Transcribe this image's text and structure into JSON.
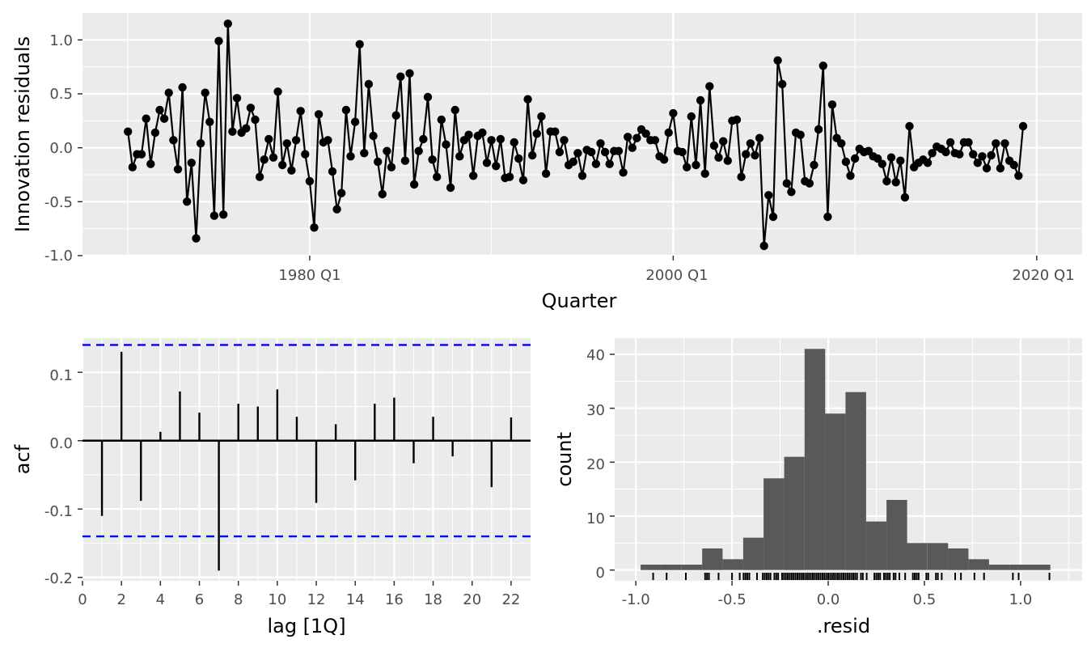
{
  "chart_data": [
    {
      "type": "line",
      "xlabel": "Quarter",
      "ylabel": "Innovation residuals",
      "x_tick_labels": [
        {
          "t": 40,
          "label": "1980 Q1"
        },
        {
          "t": 120,
          "label": "2000 Q1"
        },
        {
          "t": 200,
          "label": "2020 Q1"
        }
      ],
      "y_ticks": [
        1.0,
        0.5,
        0.0,
        -0.5,
        -1.0
      ],
      "y_tick_labels": [
        "1.0",
        "0.5",
        "0.0",
        "-0.5",
        "-1.0"
      ],
      "xlim": [
        -10,
        210
      ],
      "ylim": [
        -1.0,
        1.25
      ],
      "grid": true,
      "series": [
        {
          "values": [
            0.15,
            -0.18,
            -0.06,
            -0.06,
            0.27,
            -0.15,
            0.14,
            0.35,
            0.27,
            0.51,
            0.07,
            -0.2,
            0.56,
            -0.5,
            -0.14,
            -0.84,
            0.04,
            0.51,
            0.24,
            -0.63,
            0.99,
            -0.62,
            1.15,
            0.15,
            0.46,
            0.14,
            0.18,
            0.37,
            0.26,
            -0.27,
            -0.11,
            0.08,
            -0.09,
            0.52,
            -0.16,
            0.04,
            -0.21,
            0.07,
            0.34,
            -0.06,
            -0.31,
            -0.74,
            0.31,
            0.05,
            0.07,
            -0.22,
            -0.57,
            -0.42,
            0.35,
            -0.08,
            0.24,
            0.96,
            -0.05,
            0.59,
            0.11,
            -0.13,
            -0.43,
            -0.03,
            -0.18,
            0.3,
            0.66,
            -0.12,
            0.69,
            -0.34,
            -0.03,
            0.08,
            0.47,
            -0.11,
            -0.27,
            0.26,
            0.03,
            -0.37,
            0.35,
            -0.08,
            0.07,
            0.12,
            -0.26,
            0.11,
            0.14,
            -0.14,
            0.07,
            -0.17,
            0.08,
            -0.28,
            -0.27,
            0.05,
            -0.1,
            -0.3,
            0.45,
            -0.07,
            0.13,
            0.29,
            -0.24,
            0.15,
            0.15,
            -0.04,
            0.07,
            -0.16,
            -0.13,
            -0.05,
            -0.26,
            -0.02,
            -0.04,
            -0.15,
            0.04,
            -0.04,
            -0.15,
            -0.03,
            -0.03,
            -0.23,
            0.1,
            0.0,
            0.09,
            0.17,
            0.13,
            0.07,
            0.07,
            -0.08,
            -0.11,
            0.14,
            0.32,
            -0.03,
            -0.04,
            -0.18,
            0.29,
            -0.16,
            0.44,
            -0.24,
            0.57,
            0.02,
            -0.09,
            0.06,
            -0.12,
            0.25,
            0.26,
            -0.27,
            -0.06,
            0.04,
            -0.07,
            0.09,
            -0.91,
            -0.44,
            -0.64,
            0.81,
            0.59,
            -0.33,
            -0.41,
            0.14,
            0.12,
            -0.31,
            -0.33,
            -0.16,
            0.17,
            0.76,
            -0.64,
            0.4,
            0.09,
            0.04,
            -0.13,
            -0.26,
            -0.1,
            -0.01,
            -0.04,
            -0.03,
            -0.08,
            -0.1,
            -0.15,
            -0.31,
            -0.09,
            -0.32,
            -0.12,
            -0.46,
            0.2,
            -0.18,
            -0.14,
            -0.11,
            -0.14,
            -0.05,
            0.01,
            -0.01,
            -0.04,
            0.05,
            -0.05,
            -0.06,
            0.05,
            0.05,
            -0.06,
            -0.14,
            -0.08,
            -0.19,
            -0.07,
            0.04,
            -0.19,
            0.04,
            -0.12,
            -0.16,
            -0.26,
            0.2
          ]
        }
      ]
    },
    {
      "type": "bar",
      "xlabel": "lag [1Q]",
      "ylabel": "acf",
      "x_ticks": [
        0,
        2,
        4,
        6,
        8,
        10,
        12,
        14,
        16,
        18,
        20,
        22
      ],
      "x_tick_labels": [
        "0",
        "2",
        "4",
        "6",
        "8",
        "10",
        "12",
        "14",
        "16",
        "18",
        "20",
        "22"
      ],
      "y_ticks": [
        0.1,
        0.0,
        -0.1,
        -0.2
      ],
      "y_tick_labels": [
        "0.1",
        "0.0",
        "-0.1",
        "-0.2"
      ],
      "xlim": [
        0,
        23
      ],
      "ylim": [
        -0.205,
        0.15
      ],
      "grid": true,
      "lags": [
        1,
        2,
        3,
        4,
        5,
        6,
        7,
        8,
        9,
        10,
        11,
        12,
        13,
        14,
        15,
        16,
        17,
        18,
        19,
        20,
        21,
        22
      ],
      "values": [
        -0.11,
        0.13,
        -0.088,
        0.013,
        0.072,
        0.041,
        -0.19,
        0.054,
        0.05,
        0.075,
        0.035,
        -0.091,
        0.024,
        -0.058,
        0.054,
        0.063,
        -0.033,
        0.035,
        -0.023,
        0.0,
        -0.068,
        0.034
      ],
      "confidence_bounds": [
        0.14,
        -0.14
      ],
      "bound_color": "#0000ff"
    },
    {
      "type": "bar",
      "xlabel": ".resid",
      "ylabel": "count",
      "x_ticks": [
        -1.0,
        -0.5,
        0.0,
        0.5,
        1.0
      ],
      "x_tick_labels": [
        "-1.0",
        "-0.5",
        "0.0",
        "0.5",
        "1.0"
      ],
      "y_ticks": [
        0,
        10,
        20,
        30,
        40
      ],
      "y_tick_labels": [
        "0",
        "10",
        "20",
        "30",
        "40"
      ],
      "xlim": [
        -1.11,
        1.32
      ],
      "ylim": [
        -2,
        43
      ],
      "grid": true,
      "bar_color": "#595959",
      "bin_edges": [
        -0.975,
        -0.868,
        -0.762,
        -0.655,
        -0.549,
        -0.442,
        -0.336,
        -0.229,
        -0.123,
        -0.016,
        0.09,
        0.197,
        0.303,
        0.41,
        0.516,
        0.623,
        0.729,
        0.836,
        0.942,
        1.049,
        1.155
      ],
      "counts": [
        1,
        1,
        1,
        4,
        2,
        6,
        17,
        21,
        41,
        29,
        33,
        9,
        13,
        5,
        5,
        4,
        2,
        1,
        1,
        1
      ],
      "rug": [
        -0.91,
        -0.84,
        -0.74,
        -0.64,
        -0.63,
        -0.62,
        -0.57,
        -0.5,
        -0.46,
        -0.44,
        -0.43,
        -0.42,
        -0.41,
        -0.37,
        -0.34,
        -0.33,
        -0.32,
        -0.31,
        -0.3,
        -0.28,
        -0.27,
        -0.26,
        -0.24,
        -0.23,
        -0.22,
        -0.21,
        -0.2,
        -0.19,
        -0.18,
        -0.17,
        -0.16,
        -0.15,
        -0.14,
        -0.13,
        -0.12,
        -0.11,
        -0.1,
        -0.09,
        -0.08,
        -0.07,
        -0.06,
        -0.05,
        -0.04,
        -0.03,
        -0.02,
        -0.01,
        0.0,
        0.01,
        0.02,
        0.03,
        0.04,
        0.05,
        0.06,
        0.07,
        0.08,
        0.09,
        0.1,
        0.11,
        0.12,
        0.13,
        0.14,
        0.15,
        0.17,
        0.18,
        0.2,
        0.24,
        0.25,
        0.26,
        0.27,
        0.29,
        0.3,
        0.31,
        0.32,
        0.34,
        0.35,
        0.37,
        0.4,
        0.44,
        0.45,
        0.46,
        0.47,
        0.51,
        0.52,
        0.56,
        0.57,
        0.59,
        0.66,
        0.69,
        0.76,
        0.81,
        0.96,
        0.99,
        1.15
      ]
    }
  ]
}
